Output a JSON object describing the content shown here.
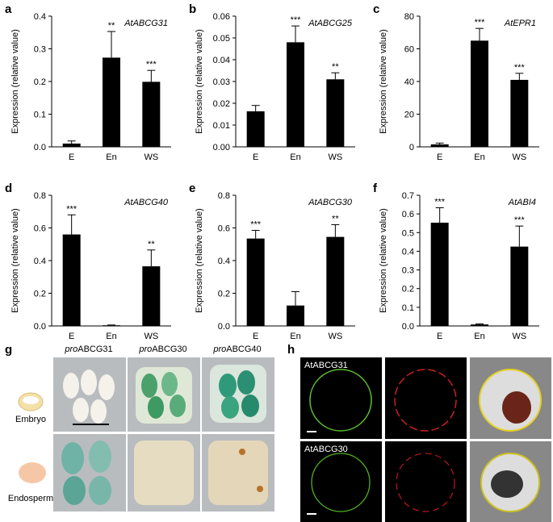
{
  "chart_data": [
    {
      "type": "bar",
      "label": "a",
      "title": "AtABCG31",
      "ylabel": "Expression (relative value)",
      "categories": [
        "E",
        "En",
        "WS"
      ],
      "values": [
        0.01,
        0.273,
        0.199
      ],
      "errors": [
        0.008,
        0.08,
        0.035
      ],
      "annotations": [
        null,
        "**",
        "***"
      ],
      "color": "#000000",
      "ylim": [
        0,
        0.4
      ],
      "yticks": [
        {
          "value": 0,
          "label": "0.0"
        },
        0.1,
        0.2,
        0.3,
        0.4
      ]
    },
    {
      "type": "bar",
      "label": "b",
      "title": "AtABCG25",
      "ylabel": "Expression (relative value)",
      "categories": [
        "E",
        "En",
        "WS"
      ],
      "values": [
        0.0163,
        0.048,
        0.031
      ],
      "errors": [
        0.0027,
        0.0075,
        0.003
      ],
      "annotations": [
        null,
        "***",
        "**"
      ],
      "color": "#000000",
      "ylim": [
        0,
        0.06
      ],
      "yticks": [
        {
          "value": 0,
          "label": "0.00"
        },
        {
          "value": 0.01,
          "label": "0.01"
        },
        {
          "value": 0.02,
          "label": "0.02"
        },
        {
          "value": 0.03,
          "label": "0.03"
        },
        {
          "value": 0.04,
          "label": "0.04"
        },
        {
          "value": 0.05,
          "label": "0.05"
        },
        {
          "value": 0.06,
          "label": "0.06"
        }
      ]
    },
    {
      "type": "bar",
      "label": "c",
      "title": "AtEPR1",
      "ylabel": "Expression (relative value)",
      "categories": [
        "E",
        "En",
        "WS"
      ],
      "values": [
        1.5,
        65,
        41
      ],
      "errors": [
        0.8,
        7.5,
        4
      ],
      "annotations": [
        null,
        "***",
        "***"
      ],
      "color": "#000000",
      "ylim": [
        0,
        80
      ],
      "yticks": [
        0,
        20,
        40,
        60,
        80
      ]
    },
    {
      "type": "bar",
      "label": "d",
      "title": "AtABCG40",
      "ylabel": "Expression (relative value)",
      "categories": [
        "E",
        "En",
        "WS"
      ],
      "values": [
        0.56,
        0.004,
        0.365
      ],
      "errors": [
        0.12,
        0.002,
        0.1
      ],
      "annotations": [
        "***",
        null,
        "**"
      ],
      "color": "#000000",
      "ylim": [
        0,
        0.8
      ],
      "yticks": [
        {
          "value": 0,
          "label": "0.0"
        },
        0.2,
        0.4,
        0.6,
        0.8
      ]
    },
    {
      "type": "bar",
      "label": "e",
      "title": "AtABCG30",
      "ylabel": "Expression (relative value)",
      "categories": [
        "E",
        "En",
        "WS"
      ],
      "values": [
        0.535,
        0.125,
        0.545
      ],
      "errors": [
        0.05,
        0.085,
        0.075
      ],
      "annotations": [
        "***",
        null,
        "**"
      ],
      "color": "#000000",
      "ylim": [
        0,
        0.8
      ],
      "yticks": [
        {
          "value": 0,
          "label": "0.0"
        },
        0.2,
        0.4,
        0.6,
        0.8
      ]
    },
    {
      "type": "bar",
      "label": "f",
      "title": "AtABI4",
      "ylabel": "Expression (relative value)",
      "categories": [
        "E",
        "En",
        "WS"
      ],
      "values": [
        0.553,
        0.008,
        0.425
      ],
      "errors": [
        0.08,
        0.003,
        0.11
      ],
      "annotations": [
        "***",
        null,
        "***"
      ],
      "color": "#000000",
      "ylim": [
        0,
        0.7
      ],
      "yticks": [
        {
          "value": 0,
          "label": "0.0"
        },
        0.1,
        0.2,
        0.3,
        0.4,
        0.5,
        0.6,
        0.7
      ]
    }
  ],
  "panels": {
    "g": {
      "label": "g",
      "columns": [
        {
          "prefix": "pro",
          "name": "ABCG31"
        },
        {
          "prefix": "pro",
          "name": "ABCG30"
        },
        {
          "prefix": "pro",
          "name": "ABCG40"
        }
      ],
      "rows": [
        "Embryo",
        "Endosperm"
      ]
    },
    "h": {
      "label": "h",
      "rows": [
        "AtABCG31",
        "AtABCG30"
      ]
    }
  }
}
